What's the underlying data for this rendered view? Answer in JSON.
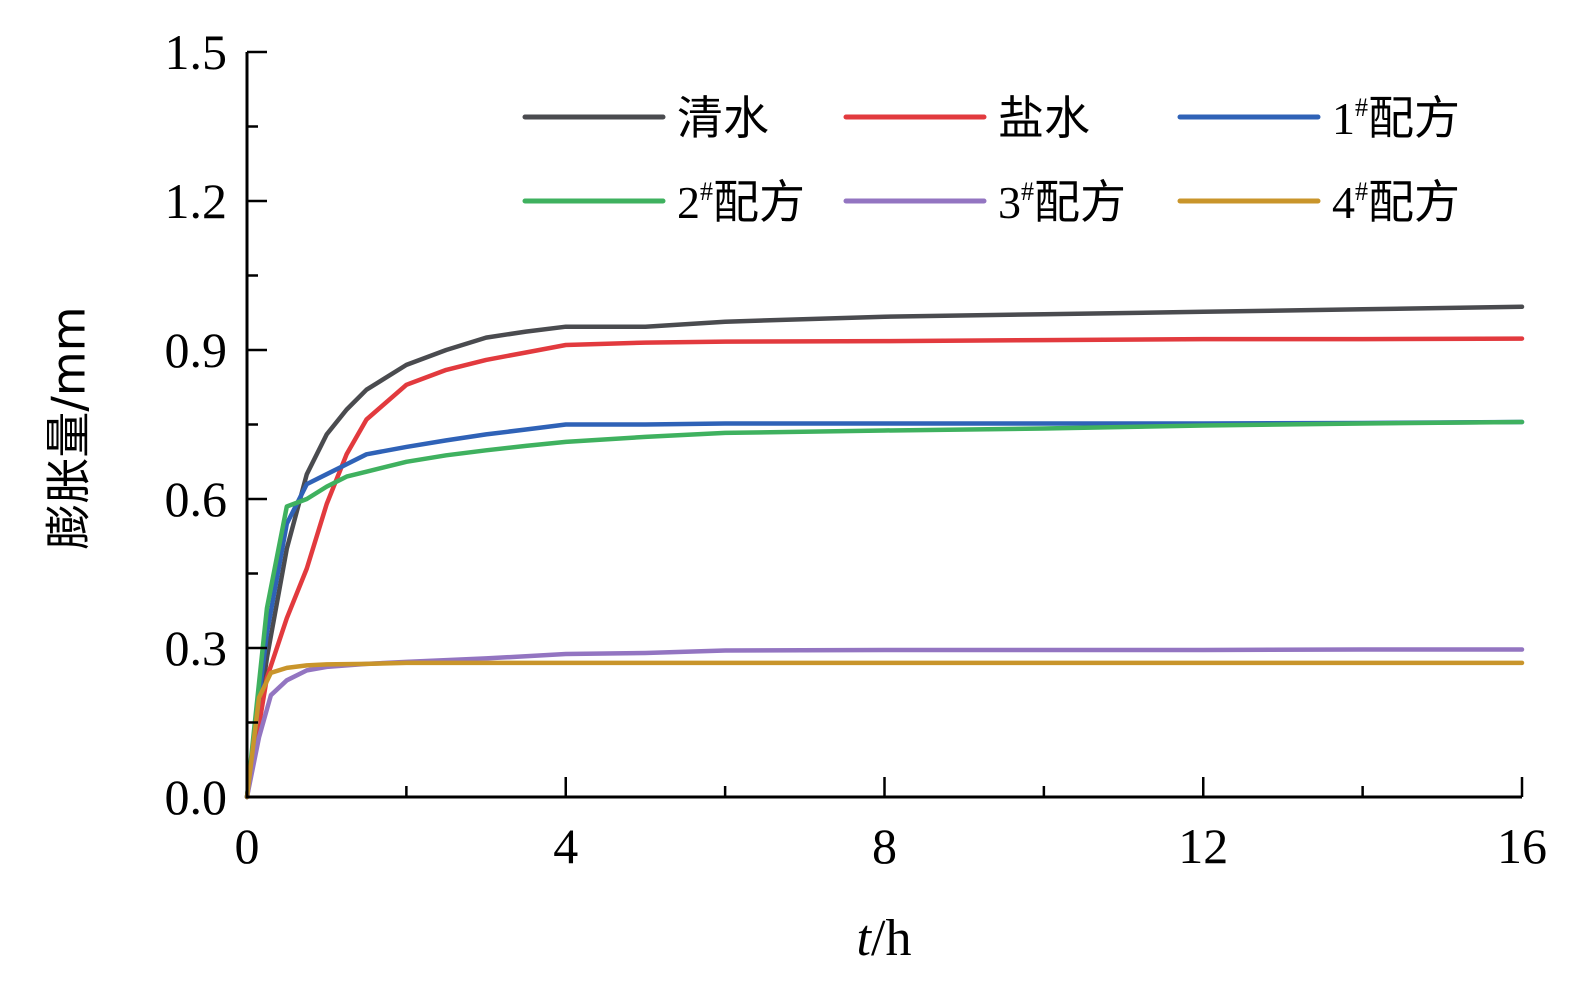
{
  "chart_data": {
    "type": "line",
    "xlabel_italic": "t",
    "xlabel_rest": "/h",
    "ylabel": "膨胀量/mm",
    "xlim": [
      0,
      16
    ],
    "ylim": [
      0,
      1.5
    ],
    "x_ticks": [
      "0",
      "4",
      "8",
      "12",
      "16"
    ],
    "y_ticks": [
      "0.0",
      "0.3",
      "0.6",
      "0.9",
      "1.2",
      "1.5"
    ],
    "legend_position": "top-right",
    "grid": false,
    "series": [
      {
        "name": "清水",
        "name_main": "清水",
        "name_sup": "",
        "name_tail": "",
        "color": "#4a4b4f",
        "x": [
          0,
          0.25,
          0.5,
          0.75,
          1.0,
          1.25,
          1.5,
          2.0,
          2.5,
          3.0,
          3.5,
          4.0,
          5.0,
          6.0,
          8.0,
          10.0,
          12.0,
          14.0,
          16.0
        ],
        "y": [
          0,
          0.28,
          0.5,
          0.65,
          0.73,
          0.78,
          0.82,
          0.87,
          0.9,
          0.925,
          0.937,
          0.947,
          0.947,
          0.957,
          0.967,
          0.972,
          0.977,
          0.982,
          0.987
        ]
      },
      {
        "name": "盐水",
        "name_main": "盐水",
        "name_sup": "",
        "name_tail": "",
        "color": "#e23a3e",
        "x": [
          0,
          0.25,
          0.5,
          0.75,
          1.0,
          1.25,
          1.5,
          2.0,
          2.5,
          3.0,
          3.5,
          4.0,
          5.0,
          6.0,
          8.0,
          10.0,
          12.0,
          14.0,
          16.0
        ],
        "y": [
          0,
          0.24,
          0.36,
          0.46,
          0.59,
          0.69,
          0.76,
          0.83,
          0.86,
          0.88,
          0.895,
          0.91,
          0.915,
          0.917,
          0.918,
          0.92,
          0.922,
          0.922,
          0.923
        ]
      },
      {
        "name": "1#配方",
        "name_main": "1",
        "name_sup": "#",
        "name_tail": "配方",
        "color": "#2f62b7",
        "x": [
          0,
          0.25,
          0.5,
          0.75,
          1.0,
          1.25,
          1.5,
          2.0,
          2.5,
          3.0,
          3.5,
          4.0,
          5.0,
          6.0,
          8.0,
          10.0,
          12.0,
          14.0,
          16.0
        ],
        "y": [
          0,
          0.33,
          0.55,
          0.63,
          0.65,
          0.67,
          0.69,
          0.705,
          0.718,
          0.73,
          0.74,
          0.75,
          0.75,
          0.752,
          0.752,
          0.752,
          0.752,
          0.753,
          0.755
        ]
      },
      {
        "name": "2#配方",
        "name_main": "2",
        "name_sup": "#",
        "name_tail": "配方",
        "color": "#3fb15f",
        "x": [
          0,
          0.25,
          0.5,
          0.75,
          1.0,
          1.25,
          1.5,
          2.0,
          2.5,
          3.0,
          3.5,
          4.0,
          5.0,
          6.0,
          8.0,
          10.0,
          12.0,
          14.0,
          16.0
        ],
        "y": [
          0,
          0.38,
          0.585,
          0.6,
          0.625,
          0.645,
          0.655,
          0.675,
          0.688,
          0.698,
          0.707,
          0.715,
          0.725,
          0.733,
          0.738,
          0.742,
          0.748,
          0.752,
          0.755
        ]
      },
      {
        "name": "3#配方",
        "name_main": "3",
        "name_sup": "#",
        "name_tail": "配方",
        "color": "#9375c1",
        "x": [
          0,
          0.15,
          0.3,
          0.5,
          0.75,
          1.0,
          1.5,
          2.0,
          3.0,
          4.0,
          5.0,
          6.0,
          8.0,
          10.0,
          12.0,
          14.0,
          16.0
        ],
        "y": [
          0,
          0.12,
          0.205,
          0.235,
          0.255,
          0.262,
          0.268,
          0.272,
          0.279,
          0.288,
          0.29,
          0.295,
          0.296,
          0.296,
          0.296,
          0.297,
          0.297
        ]
      },
      {
        "name": "4#配方",
        "name_main": "4",
        "name_sup": "#",
        "name_tail": "配方",
        "color": "#c9952b",
        "x": [
          0,
          0.15,
          0.3,
          0.5,
          0.75,
          1.0,
          1.5,
          2.0,
          4.0,
          6.0,
          8.0,
          10.0,
          12.0,
          14.0,
          16.0
        ],
        "y": [
          0,
          0.2,
          0.25,
          0.26,
          0.265,
          0.267,
          0.268,
          0.27,
          0.27,
          0.27,
          0.27,
          0.27,
          0.27,
          0.27,
          0.27
        ]
      }
    ]
  }
}
